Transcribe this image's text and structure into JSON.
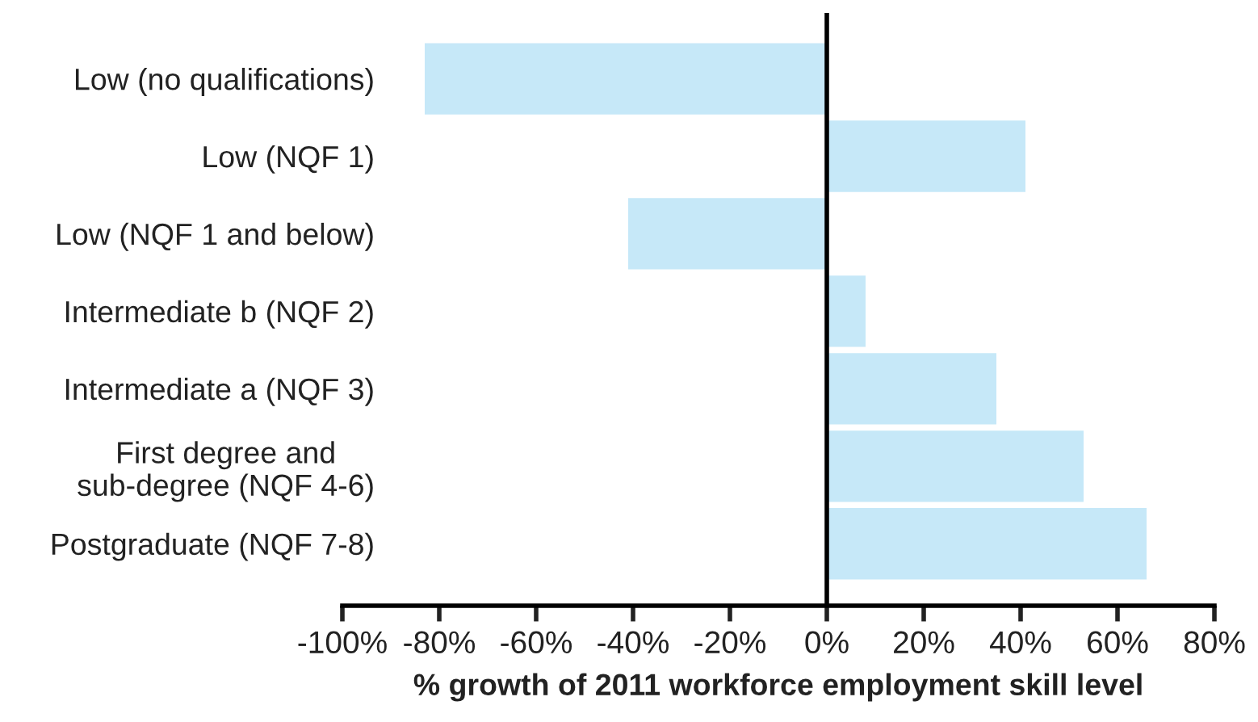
{
  "chart_data": {
    "type": "bar",
    "orientation": "horizontal",
    "categories": [
      "Low (no qualifications)",
      "Low (NQF 1)",
      "Low (NQF 1 and below)",
      "Intermediate b (NQF 2)",
      "Intermediate a (NQF 3)",
      "First degree and\nsub-degree (NQF 4-6)",
      "Postgraduate (NQF 7-8)"
    ],
    "values": [
      -83,
      41,
      -41,
      8,
      35,
      53,
      66
    ],
    "color": "#c6e8f8",
    "xlabel": "% growth of 2011 workforce employment skill level",
    "xlim": [
      -100,
      80
    ],
    "xticks": [
      {
        "value": -100,
        "label": "-100%"
      },
      {
        "value": -80,
        "label": "-80%"
      },
      {
        "value": -60,
        "label": "-60%"
      },
      {
        "value": -40,
        "label": "-40%"
      },
      {
        "value": -20,
        "label": "-20%"
      },
      {
        "value": 0,
        "label": "0%"
      },
      {
        "value": 20,
        "label": "20%"
      },
      {
        "value": 40,
        "label": "40%"
      },
      {
        "value": 60,
        "label": "60%"
      },
      {
        "value": 80,
        "label": "80%"
      }
    ],
    "ref_lines": [
      {
        "axis": "x",
        "value": 0,
        "color": "#000000",
        "line_style": "solid"
      }
    ],
    "grid": false
  }
}
